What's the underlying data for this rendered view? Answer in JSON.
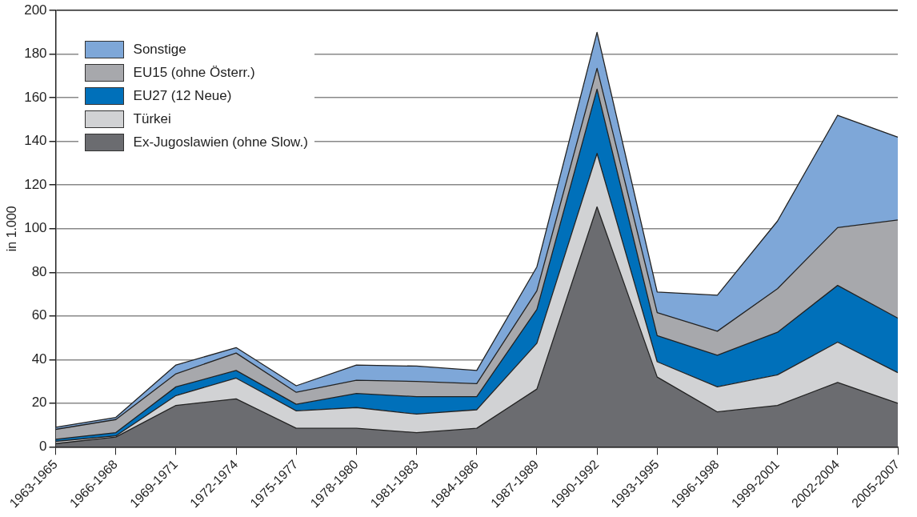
{
  "chart_data": {
    "type": "area",
    "stacked": true,
    "ylabel": "in 1.000",
    "categories": [
      "1963-1965",
      "1966-1968",
      "1969-1971",
      "1972-1974",
      "1975-1977",
      "1978-1980",
      "1981-1983",
      "1984-1986",
      "1987-1989",
      "1990-1992",
      "1993-1995",
      "1996-1998",
      "1999-2001",
      "2002-2004",
      "2005-2007"
    ],
    "series": [
      {
        "name": "Ex-Jugoslawien (ohne Slow.)",
        "color": "#6b6c70",
        "values": [
          1.5,
          4.5,
          19,
          22,
          8.5,
          8.5,
          6.5,
          8.5,
          26.5,
          110,
          32,
          16,
          19,
          29.5,
          20
        ]
      },
      {
        "name": "Türkei",
        "color": "#d1d2d4",
        "values": [
          1,
          0.5,
          4.5,
          9.5,
          8,
          9.5,
          8.5,
          8.5,
          21,
          24.5,
          7,
          11.5,
          14,
          18.5,
          14
        ]
      },
      {
        "name": "EU27 (12 Neue)",
        "color": "#0070ba",
        "values": [
          1,
          1.5,
          4,
          3.5,
          3,
          6.5,
          8,
          6,
          15.5,
          29.5,
          12,
          14.5,
          19.5,
          26,
          25
        ]
      },
      {
        "name": "EU15 (ohne Österr.)",
        "color": "#a7a8ac",
        "values": [
          4.5,
          6,
          6,
          8,
          5.5,
          6,
          7,
          6,
          8.5,
          9.5,
          10.5,
          11,
          20,
          26.5,
          45
        ]
      },
      {
        "name": "Sonstige",
        "color": "#7ea7d8",
        "values": [
          1,
          1,
          4,
          2.5,
          3,
          7,
          7,
          6,
          11,
          16.5,
          9.5,
          16.5,
          31,
          51.5,
          38
        ]
      }
    ],
    "ylim": [
      0,
      200
    ],
    "yticks": [
      0,
      20,
      40,
      60,
      80,
      100,
      120,
      140,
      160,
      180,
      200
    ],
    "grid": "y",
    "legend": "top left"
  }
}
